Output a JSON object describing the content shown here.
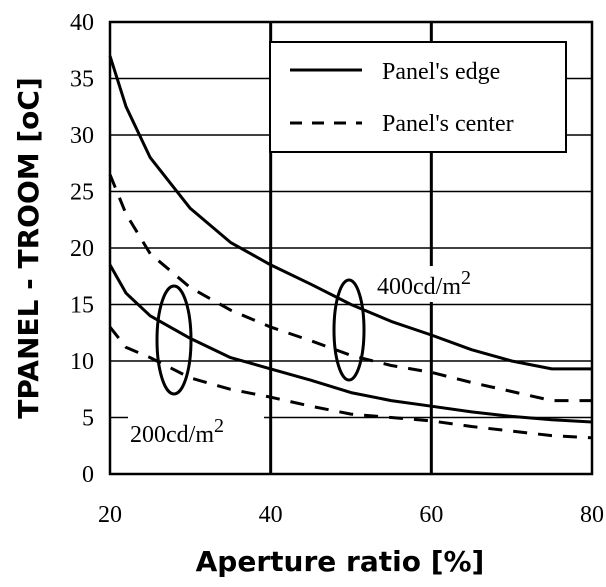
{
  "chart_data": {
    "type": "line",
    "xlabel": "Aperture ratio [%]",
    "ylabel": "TPANEL - TROOM [oC]",
    "xlim": [
      20,
      80
    ],
    "ylim": [
      0,
      40
    ],
    "x_ticks": [
      "20",
      "40",
      "60",
      "80"
    ],
    "y_ticks": [
      "0",
      "5",
      "10",
      "15",
      "20",
      "25",
      "30",
      "35",
      "40"
    ],
    "grid": true,
    "legend": {
      "placement": "top-right",
      "entries": [
        {
          "label": "Panel's edge",
          "style": "solid"
        },
        {
          "label": "Panel's center",
          "style": "dashed"
        }
      ]
    },
    "annotations": [
      {
        "text": "400cd/m2"
      },
      {
        "text": "200cd/m2"
      }
    ],
    "series": [
      {
        "line_style": "solid",
        "group": "400cd/m2",
        "x": [
          20,
          22,
          25,
          30,
          35,
          40,
          45,
          50,
          55,
          60,
          65,
          70,
          75,
          80
        ],
        "y": [
          37,
          32.5,
          28,
          23.5,
          20.5,
          18.5,
          16.8,
          15,
          13.5,
          12.3,
          11,
          10,
          9.3,
          9.3
        ]
      },
      {
        "line_style": "dashed",
        "group": "400cd/m2",
        "x": [
          20,
          22,
          25,
          30,
          35,
          40,
          45,
          50,
          55,
          60,
          65,
          70,
          75,
          80
        ],
        "y": [
          26.5,
          23,
          19.5,
          16.5,
          14.5,
          13,
          11.8,
          10.5,
          9.6,
          9,
          8.1,
          7.3,
          6.5,
          6.5
        ]
      },
      {
        "line_style": "solid",
        "group": "200cd/m2",
        "x": [
          20,
          22,
          25,
          30,
          35,
          40,
          45,
          50,
          55,
          60,
          65,
          70,
          75,
          80
        ],
        "y": [
          18.5,
          16,
          14,
          12,
          10.3,
          9.3,
          8.3,
          7.2,
          6.5,
          6,
          5.5,
          5.1,
          4.8,
          4.6
        ]
      },
      {
        "line_style": "dashed",
        "group": "200cd/m2",
        "x": [
          20,
          22,
          25,
          30,
          35,
          40,
          45,
          50,
          55,
          60,
          65,
          70,
          75,
          80
        ],
        "y": [
          13,
          11.2,
          10.3,
          8.5,
          7.5,
          6.8,
          6,
          5.3,
          5,
          4.7,
          4.2,
          3.8,
          3.4,
          3.2
        ]
      }
    ]
  }
}
